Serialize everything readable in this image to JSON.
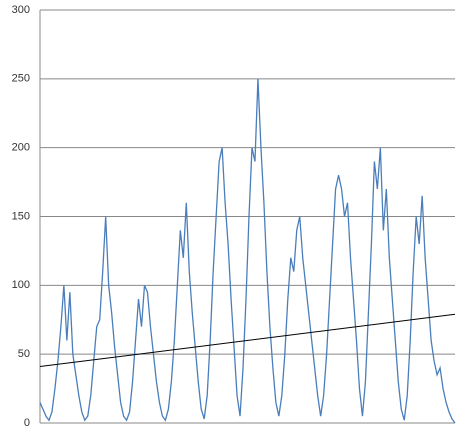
{
  "chart_data": {
    "type": "line",
    "series": [
      {
        "color": "#4a7ebb",
        "values": [
          15,
          10,
          5,
          2,
          8,
          25,
          45,
          70,
          100,
          60,
          95,
          50,
          35,
          20,
          8,
          2,
          5,
          20,
          45,
          70,
          75,
          110,
          150,
          100,
          80,
          55,
          35,
          15,
          5,
          2,
          8,
          30,
          60,
          90,
          70,
          100,
          95,
          70,
          50,
          30,
          15,
          5,
          2,
          10,
          30,
          60,
          100,
          140,
          120,
          160,
          110,
          80,
          55,
          30,
          10,
          3,
          20,
          60,
          110,
          150,
          190,
          200,
          160,
          130,
          90,
          55,
          20,
          5,
          40,
          90,
          150,
          200,
          190,
          250,
          200,
          160,
          110,
          70,
          40,
          15,
          5,
          20,
          50,
          90,
          120,
          110,
          140,
          150,
          120,
          100,
          80,
          60,
          40,
          20,
          5,
          20,
          50,
          90,
          130,
          170,
          180,
          170,
          150,
          160,
          120,
          90,
          60,
          25,
          5,
          30,
          80,
          130,
          190,
          170,
          200,
          140,
          170,
          120,
          90,
          60,
          30,
          10,
          2,
          20,
          60,
          110,
          150,
          130,
          165,
          120,
          90,
          60,
          45,
          35,
          40,
          25,
          15,
          8,
          3,
          0
        ]
      }
    ],
    "trendline": {
      "color": "#000000",
      "values": [
        41,
        79
      ]
    },
    "ylim": [
      0,
      300
    ],
    "yticks": [
      0,
      50,
      100,
      150,
      200,
      250,
      300
    ],
    "grid": true
  }
}
